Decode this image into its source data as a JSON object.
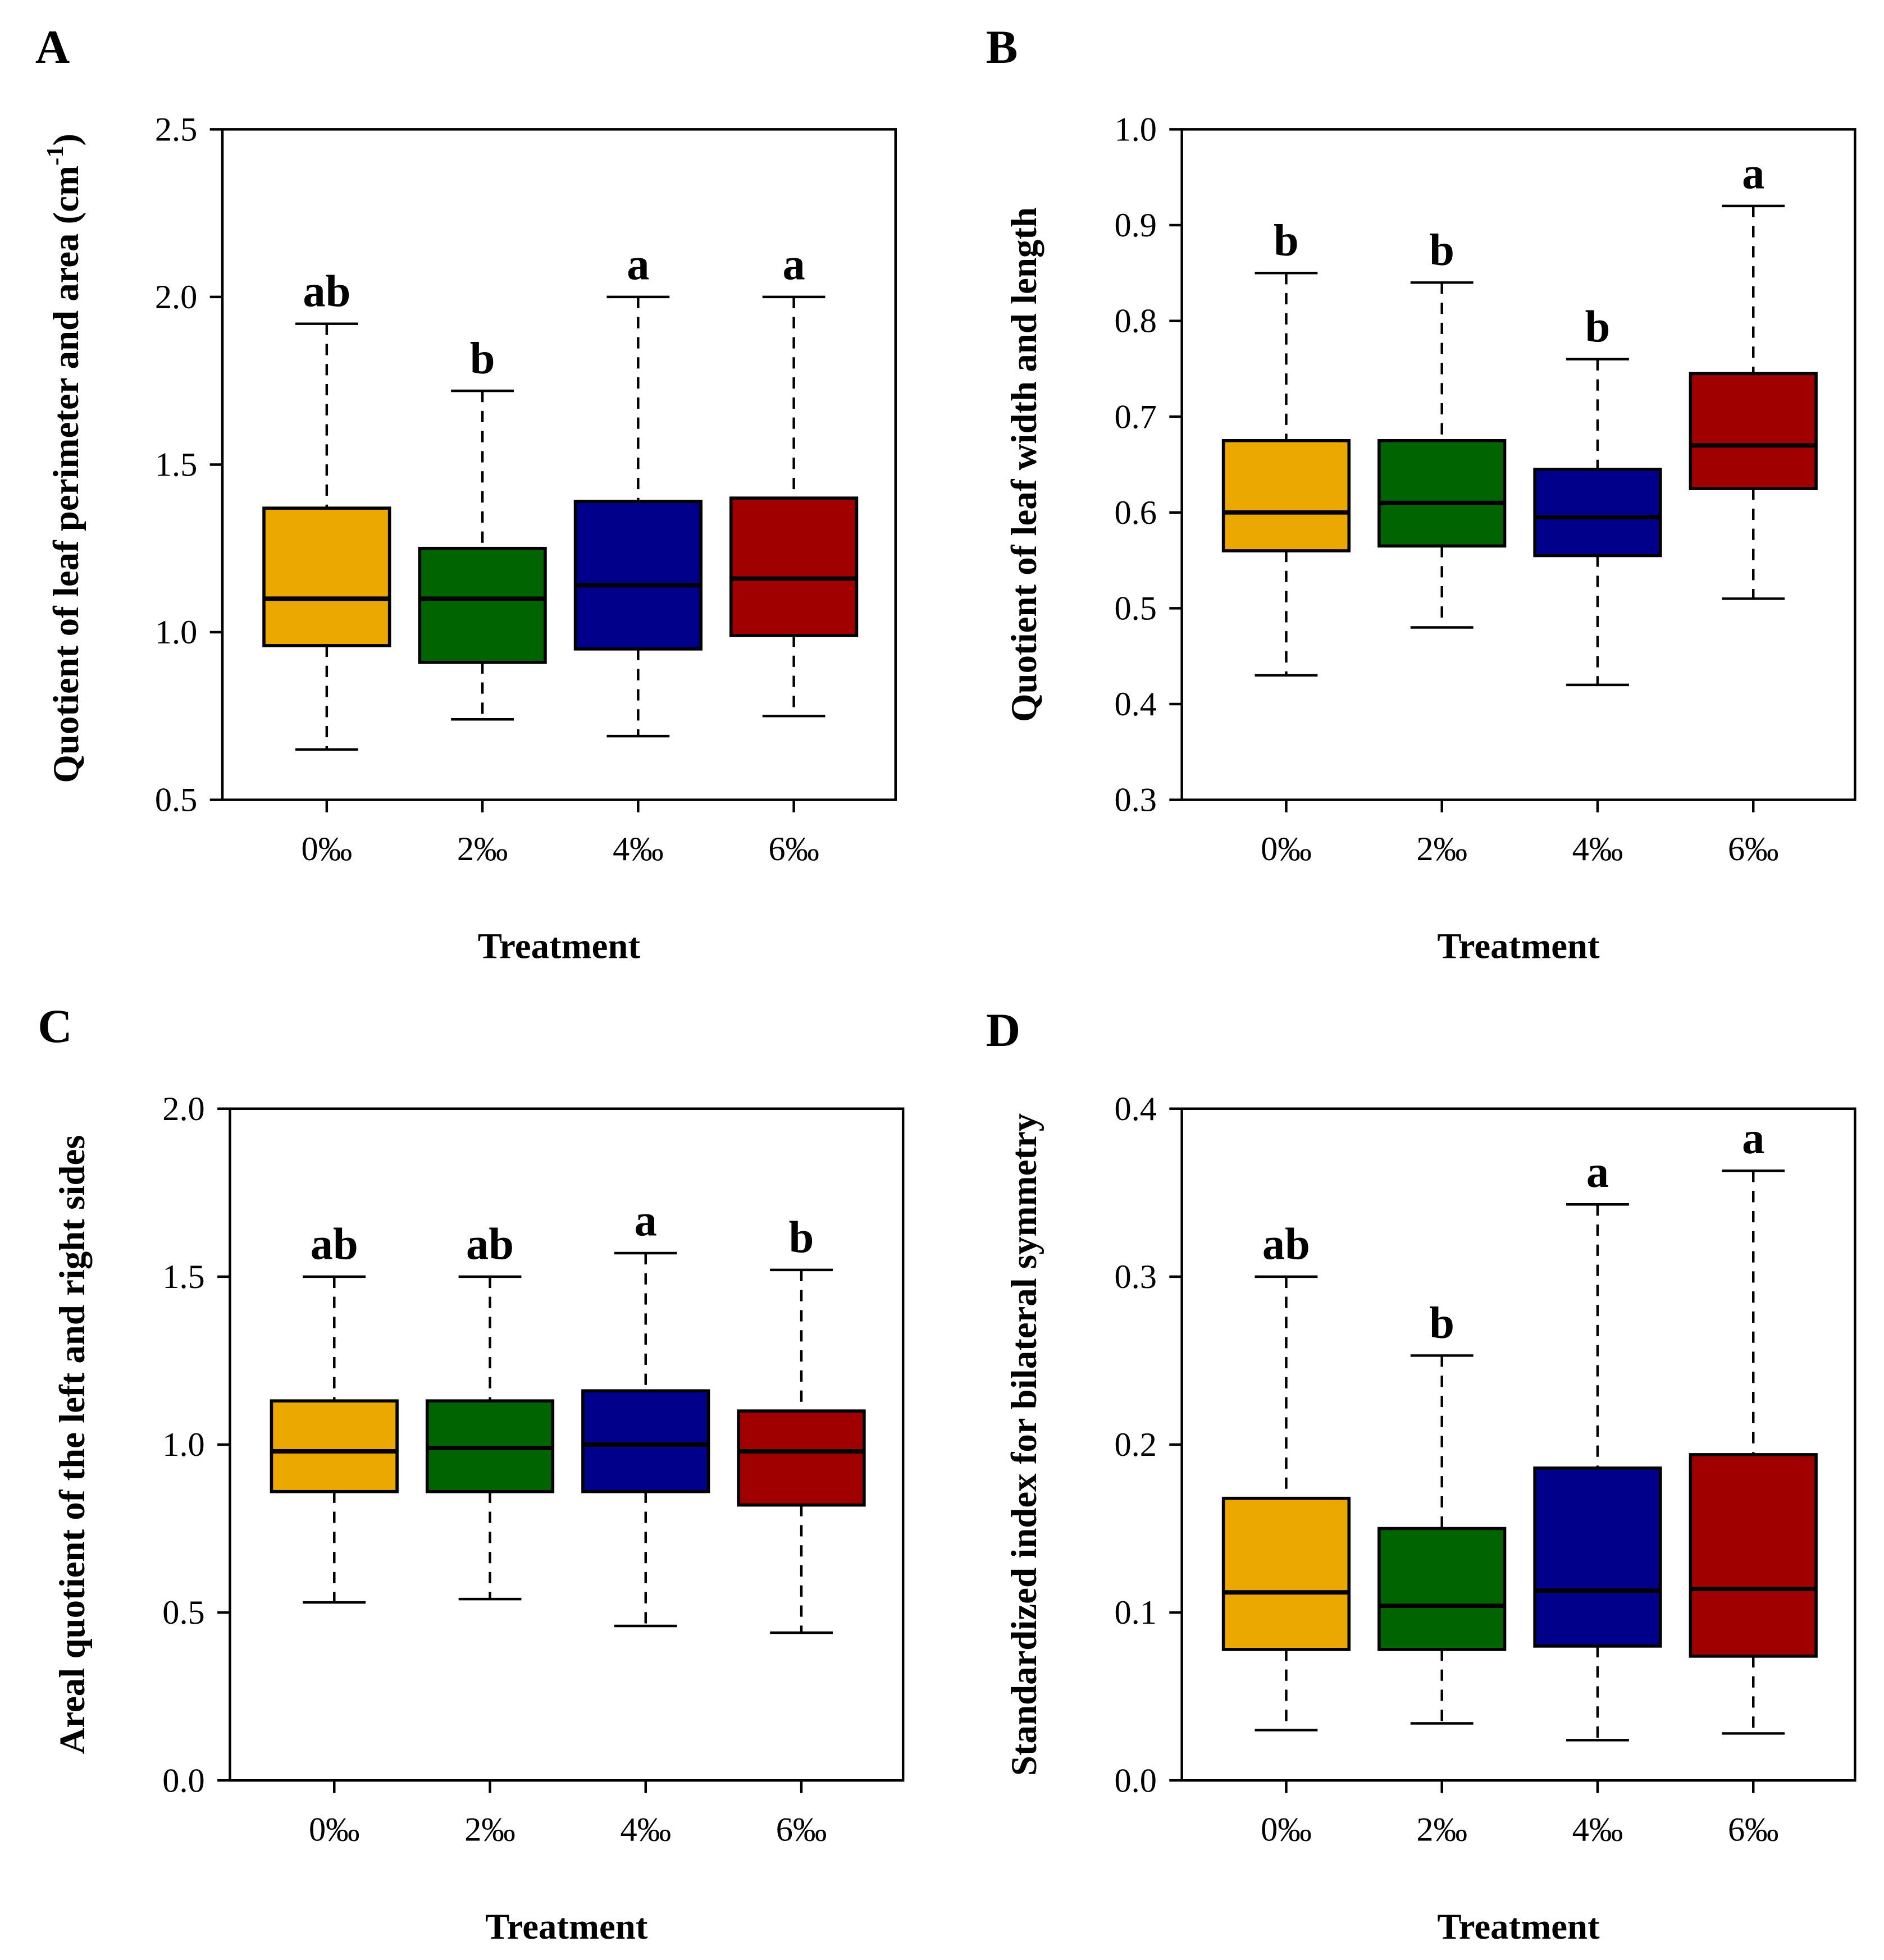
{
  "chart_data": [
    {
      "panel": "A",
      "type": "box",
      "categories": [
        "0‰",
        "2‰",
        "4‰",
        "6‰"
      ],
      "xlabel": "Treatment",
      "ylabel": "Quotient of leaf perimeter and area (cm",
      "ylabel_sup": "-1",
      "ylabel_end": ")",
      "ylim": [
        0.5,
        2.5
      ],
      "yticks": [
        "0.5",
        "1.0",
        "1.5",
        "2.0",
        "2.5"
      ],
      "boxes": [
        {
          "min": 0.65,
          "q1": 0.96,
          "median": 1.1,
          "q3": 1.37,
          "max": 1.92,
          "letter": "ab"
        },
        {
          "min": 0.74,
          "q1": 0.91,
          "median": 1.1,
          "q3": 1.25,
          "max": 1.72,
          "letter": "b"
        },
        {
          "min": 0.69,
          "q1": 0.95,
          "median": 1.14,
          "q3": 1.39,
          "max": 2.0,
          "letter": "a"
        },
        {
          "min": 0.75,
          "q1": 0.99,
          "median": 1.16,
          "q3": 1.4,
          "max": 2.0,
          "letter": "a"
        }
      ]
    },
    {
      "panel": "B",
      "type": "box",
      "categories": [
        "0‰",
        "2‰",
        "4‰",
        "6‰"
      ],
      "xlabel": "Treatment",
      "ylabel": "Quotient of leaf width and length",
      "ylim": [
        0.3,
        1.0
      ],
      "yticks": [
        "0.3",
        "0.4",
        "0.5",
        "0.6",
        "0.7",
        "0.8",
        "0.9",
        "1.0"
      ],
      "boxes": [
        {
          "min": 0.43,
          "q1": 0.56,
          "median": 0.6,
          "q3": 0.675,
          "max": 0.85,
          "letter": "b"
        },
        {
          "min": 0.48,
          "q1": 0.565,
          "median": 0.61,
          "q3": 0.675,
          "max": 0.84,
          "letter": "b"
        },
        {
          "min": 0.42,
          "q1": 0.555,
          "median": 0.595,
          "q3": 0.645,
          "max": 0.76,
          "letter": "b"
        },
        {
          "min": 0.51,
          "q1": 0.625,
          "median": 0.67,
          "q3": 0.745,
          "max": 0.92,
          "letter": "a"
        }
      ]
    },
    {
      "panel": "C",
      "type": "box",
      "categories": [
        "0‰",
        "2‰",
        "4‰",
        "6‰"
      ],
      "xlabel": "Treatment",
      "ylabel": "Areal quotient of the left and right sides",
      "ylim": [
        0.0,
        2.0
      ],
      "yticks": [
        "0.0",
        "0.5",
        "1.0",
        "1.5",
        "2.0"
      ],
      "boxes": [
        {
          "min": 0.53,
          "q1": 0.86,
          "median": 0.98,
          "q3": 1.13,
          "max": 1.5,
          "letter": "ab"
        },
        {
          "min": 0.54,
          "q1": 0.86,
          "median": 0.99,
          "q3": 1.13,
          "max": 1.5,
          "letter": "ab"
        },
        {
          "min": 0.46,
          "q1": 0.86,
          "median": 1.0,
          "q3": 1.16,
          "max": 1.57,
          "letter": "a"
        },
        {
          "min": 0.44,
          "q1": 0.82,
          "median": 0.98,
          "q3": 1.1,
          "max": 1.52,
          "letter": "b"
        }
      ]
    },
    {
      "panel": "D",
      "type": "box",
      "categories": [
        "0‰",
        "2‰",
        "4‰",
        "6‰"
      ],
      "xlabel": "Treatment",
      "ylabel": "Standardized index for bilateral symmetry",
      "ylim": [
        0.0,
        0.4
      ],
      "yticks": [
        "0.0",
        "0.1",
        "0.2",
        "0.3",
        "0.4"
      ],
      "boxes": [
        {
          "min": 0.03,
          "q1": 0.078,
          "median": 0.112,
          "q3": 0.168,
          "max": 0.3,
          "letter": "ab"
        },
        {
          "min": 0.034,
          "q1": 0.078,
          "median": 0.104,
          "q3": 0.15,
          "max": 0.253,
          "letter": "b"
        },
        {
          "min": 0.024,
          "q1": 0.08,
          "median": 0.113,
          "q3": 0.186,
          "max": 0.343,
          "letter": "a"
        },
        {
          "min": 0.028,
          "q1": 0.074,
          "median": 0.114,
          "q3": 0.194,
          "max": 0.363,
          "letter": "a"
        }
      ]
    }
  ],
  "colors": [
    "#EBA800",
    "#006400",
    "#00008B",
    "#A00000"
  ]
}
